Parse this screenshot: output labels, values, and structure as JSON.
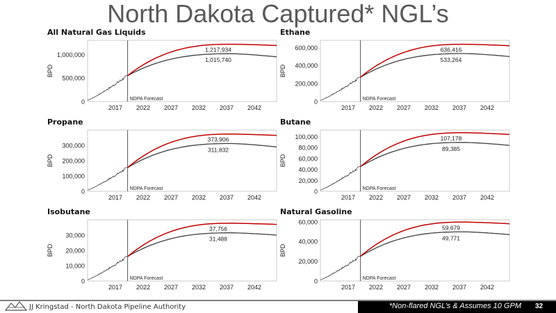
{
  "slide": {
    "title": "North Dakota Captured* NGL’s",
    "footer_author": "JJ Kringstad - North Dakota Pipeline Authority",
    "footer_note": "*Non-flared NGL’s & Assumes 10 GPM",
    "page_number": "32"
  },
  "colors": {
    "high": "#c00000",
    "low": "#404040",
    "history": "#404040"
  },
  "chart_data": [
    {
      "type": "line",
      "title": "All Natural Gas Liquids",
      "ylabel": "BPD",
      "x_ticks": [
        "2017",
        "2022",
        "2027",
        "2032",
        "2037",
        "2042"
      ],
      "y_ticks": [
        "0",
        "500,000",
        "1,000,000"
      ],
      "ylim": [
        0,
        1300000
      ],
      "divider_label": "NDPA Forecast",
      "history_end": 550000,
      "series": [
        {
          "peak": 1217934,
          "end": 1190000,
          "label": "1,217,934"
        },
        {
          "peak": 1015740,
          "end": 950000,
          "label": "1,015,740"
        }
      ]
    },
    {
      "type": "line",
      "title": "Ethane",
      "ylabel": "BPD",
      "x_ticks": [
        "2017",
        "2022",
        "2027",
        "2032",
        "2037",
        "2042"
      ],
      "y_ticks": [
        "0",
        "200,000",
        "400,000",
        "600,000"
      ],
      "ylim": [
        0,
        680000
      ],
      "divider_label": "NDPA Forecast",
      "history_end": 270000,
      "series": [
        {
          "peak": 636416,
          "end": 620000,
          "label": "636,416"
        },
        {
          "peak": 533264,
          "end": 500000,
          "label": "533,264"
        }
      ]
    },
    {
      "type": "line",
      "title": "Propane",
      "ylabel": "BPD",
      "x_ticks": [
        "2017",
        "2022",
        "2027",
        "2032",
        "2037",
        "2042"
      ],
      "y_ticks": [
        "0",
        "100,000",
        "200,000",
        "300,000"
      ],
      "ylim": [
        0,
        400000
      ],
      "divider_label": "NDPA Forecast",
      "history_end": 155000,
      "series": [
        {
          "peak": 373906,
          "end": 365000,
          "label": "373,906"
        },
        {
          "peak": 311832,
          "end": 290000,
          "label": "311,832"
        }
      ]
    },
    {
      "type": "line",
      "title": "Butane",
      "ylabel": "BPD",
      "x_ticks": [
        "2017",
        "2022",
        "2027",
        "2032",
        "2037",
        "2042"
      ],
      "y_ticks": [
        "0",
        "20,000",
        "40,000",
        "60,000",
        "80,000",
        "100,000"
      ],
      "ylim": [
        0,
        112000
      ],
      "divider_label": "NDPA Forecast",
      "history_end": 45000,
      "series": [
        {
          "peak": 107178,
          "end": 104000,
          "label": "107,178"
        },
        {
          "peak": 89385,
          "end": 84000,
          "label": "89,385"
        }
      ]
    },
    {
      "type": "line",
      "title": "Isobutane",
      "ylabel": "BPD",
      "x_ticks": [
        "2017",
        "2022",
        "2027",
        "2032",
        "2037",
        "2042"
      ],
      "y_ticks": [
        "0",
        "10,000",
        "20,000",
        "30,000"
      ],
      "ylim": [
        0,
        40000
      ],
      "divider_label": "NDPA Forecast",
      "history_end": 16000,
      "series": [
        {
          "peak": 37756,
          "end": 37000,
          "label": "37,756"
        },
        {
          "peak": 31488,
          "end": 30000,
          "label": "31,488"
        }
      ]
    },
    {
      "type": "line",
      "title": "Natural Gasoline",
      "ylabel": "BPD",
      "x_ticks": [
        "2017",
        "2022",
        "2027",
        "2032",
        "2037",
        "2042"
      ],
      "y_ticks": [
        "0",
        "20,000",
        "40,000",
        "60,000"
      ],
      "ylim": [
        0,
        62000
      ],
      "divider_label": "NDPA Forecast",
      "history_end": 25000,
      "series": [
        {
          "peak": 59679,
          "end": 58000,
          "label": "59,679"
        },
        {
          "peak": 49771,
          "end": 47000,
          "label": "49,771"
        }
      ]
    }
  ]
}
